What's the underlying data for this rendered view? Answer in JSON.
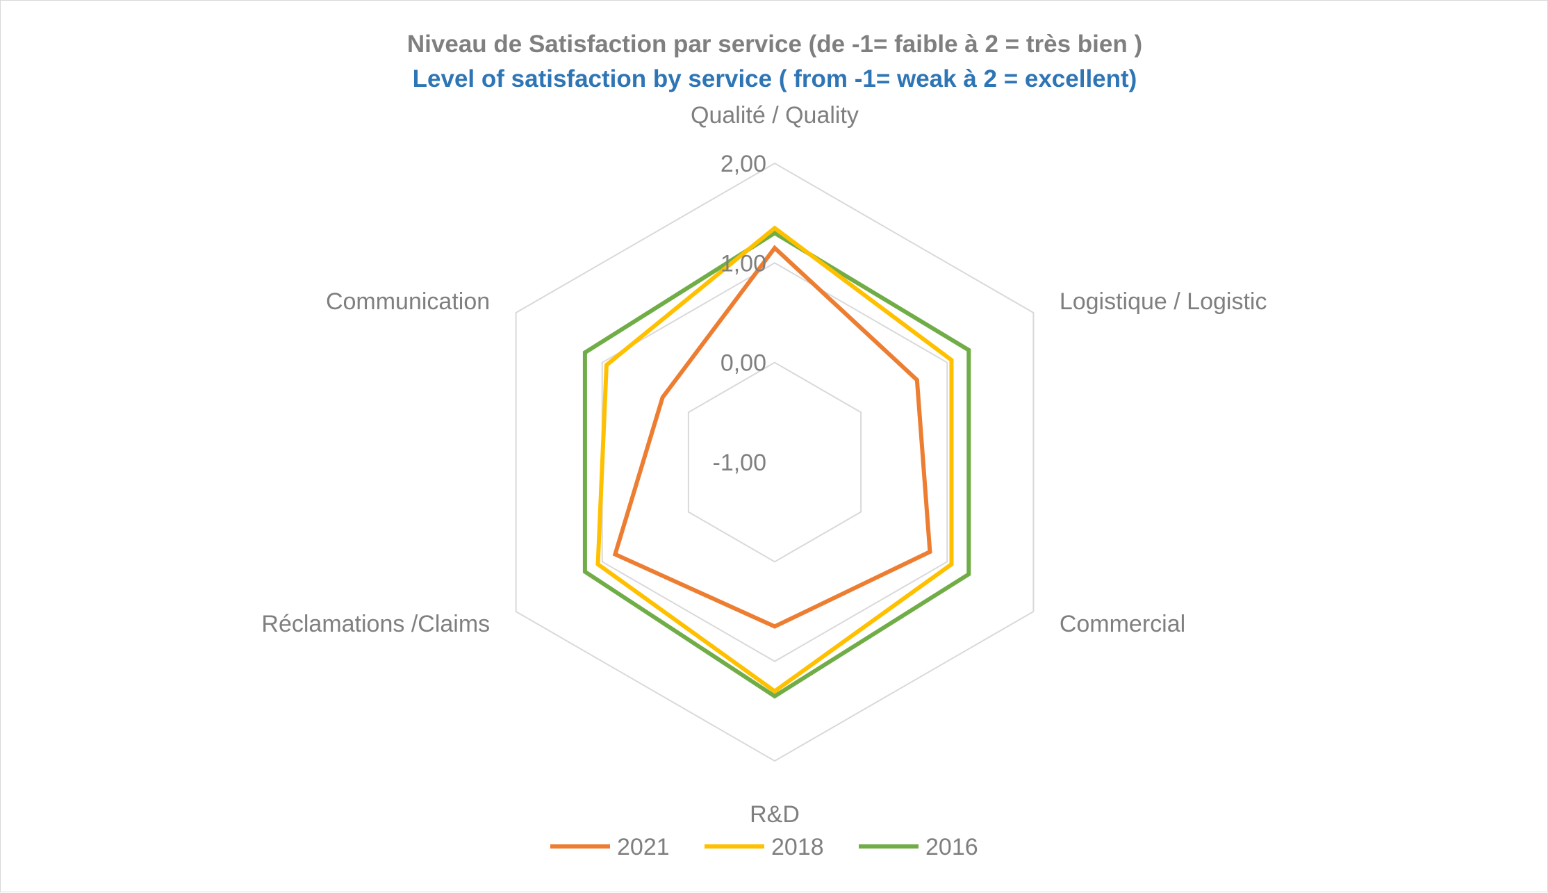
{
  "chart_data": {
    "type": "radar",
    "title": "Niveau de Satisfaction par service (de -1= faible à 2 = très bien )",
    "subtitle": "Level of satisfaction by service ( from -1= weak à 2 = excellent)",
    "categories": [
      "Qualité / Quality",
      "Logistique / Logistic",
      "Commercial",
      "R&D",
      "Réclamations /Claims",
      "Communication"
    ],
    "range": [
      -1,
      2
    ],
    "ticks": [
      -1,
      0,
      1,
      2
    ],
    "tick_labels": [
      "-1,00",
      "0,00",
      "1,00",
      "2,00"
    ],
    "grid": true,
    "legend_position": "bottom",
    "series": [
      {
        "name": "2021",
        "color": "#ED7D31",
        "values": [
          1.15,
          0.65,
          0.8,
          0.65,
          0.85,
          0.3
        ]
      },
      {
        "name": "2018",
        "color": "#FFC000",
        "values": [
          1.35,
          1.05,
          1.05,
          1.3,
          1.05,
          0.95
        ]
      },
      {
        "name": "2016",
        "color": "#70AD47",
        "values": [
          1.3,
          1.25,
          1.25,
          1.35,
          1.2,
          1.2
        ]
      }
    ],
    "title_colors": {
      "title": "#7f7f7f",
      "subtitle": "#2E75B6"
    },
    "grid_color": "#d9d9d9"
  }
}
